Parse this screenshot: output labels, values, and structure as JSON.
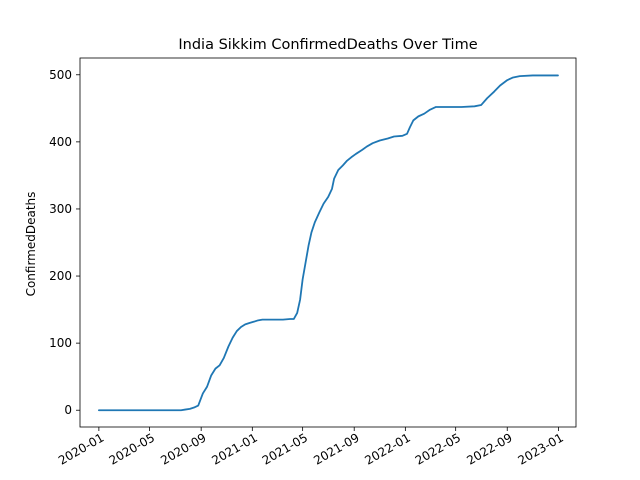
{
  "chart_data": {
    "type": "line",
    "title": "India Sikkim ConfirmedDeaths Over Time",
    "xlabel": "",
    "ylabel": "ConfirmedDeaths",
    "x_tick_labels": [
      "2020-01",
      "2020-05",
      "2020-09",
      "2021-01",
      "2021-05",
      "2021-09",
      "2022-01",
      "2022-05",
      "2022-09",
      "2023-01"
    ],
    "y_tick_labels": [
      "0",
      "100",
      "200",
      "300",
      "400",
      "500"
    ],
    "x_tick_dates": [
      "2020-01-01",
      "2020-05-01",
      "2020-09-01",
      "2021-01-01",
      "2021-05-01",
      "2021-09-01",
      "2022-01-01",
      "2022-05-01",
      "2022-09-01",
      "2023-01-01"
    ],
    "y_ticks": [
      0,
      100,
      200,
      300,
      400,
      500
    ],
    "xlim": [
      "2019-11-17",
      "2023-02-12"
    ],
    "ylim": [
      -25,
      525
    ],
    "grid": false,
    "series": [
      {
        "color": "#1f77b4",
        "points": [
          [
            "2020-01-01",
            0
          ],
          [
            "2020-03-01",
            0
          ],
          [
            "2020-05-01",
            0
          ],
          [
            "2020-07-01",
            0
          ],
          [
            "2020-07-15",
            0
          ],
          [
            "2020-07-25",
            1
          ],
          [
            "2020-08-05",
            2
          ],
          [
            "2020-08-15",
            4
          ],
          [
            "2020-08-25",
            7
          ],
          [
            "2020-09-05",
            25
          ],
          [
            "2020-09-15",
            35
          ],
          [
            "2020-09-25",
            52
          ],
          [
            "2020-10-05",
            62
          ],
          [
            "2020-10-15",
            67
          ],
          [
            "2020-10-25",
            78
          ],
          [
            "2020-11-05",
            95
          ],
          [
            "2020-11-15",
            108
          ],
          [
            "2020-11-25",
            118
          ],
          [
            "2020-12-05",
            124
          ],
          [
            "2020-12-15",
            128
          ],
          [
            "2020-12-25",
            130
          ],
          [
            "2021-01-05",
            132
          ],
          [
            "2021-01-15",
            134
          ],
          [
            "2021-01-25",
            135
          ],
          [
            "2021-02-15",
            135
          ],
          [
            "2021-03-15",
            135
          ],
          [
            "2021-04-01",
            136
          ],
          [
            "2021-04-10",
            136
          ],
          [
            "2021-04-18",
            145
          ],
          [
            "2021-04-25",
            165
          ],
          [
            "2021-05-01",
            195
          ],
          [
            "2021-05-08",
            220
          ],
          [
            "2021-05-15",
            245
          ],
          [
            "2021-05-22",
            265
          ],
          [
            "2021-05-30",
            280
          ],
          [
            "2021-06-10",
            295
          ],
          [
            "2021-06-20",
            308
          ],
          [
            "2021-07-01",
            318
          ],
          [
            "2021-07-10",
            330
          ],
          [
            "2021-07-15",
            345
          ],
          [
            "2021-07-25",
            358
          ],
          [
            "2021-08-05",
            365
          ],
          [
            "2021-08-15",
            372
          ],
          [
            "2021-08-25",
            377
          ],
          [
            "2021-09-05",
            382
          ],
          [
            "2021-09-20",
            388
          ],
          [
            "2021-10-01",
            393
          ],
          [
            "2021-10-15",
            398
          ],
          [
            "2021-11-01",
            402
          ],
          [
            "2021-11-20",
            405
          ],
          [
            "2021-12-05",
            408
          ],
          [
            "2021-12-25",
            409
          ],
          [
            "2022-01-05",
            412
          ],
          [
            "2022-01-12",
            422
          ],
          [
            "2022-01-20",
            432
          ],
          [
            "2022-02-01",
            438
          ],
          [
            "2022-02-15",
            442
          ],
          [
            "2022-03-01",
            448
          ],
          [
            "2022-03-15",
            452
          ],
          [
            "2022-04-15",
            452
          ],
          [
            "2022-05-15",
            452
          ],
          [
            "2022-06-15",
            453
          ],
          [
            "2022-07-01",
            455
          ],
          [
            "2022-07-15",
            465
          ],
          [
            "2022-08-01",
            475
          ],
          [
            "2022-08-15",
            484
          ],
          [
            "2022-09-01",
            492
          ],
          [
            "2022-09-15",
            496
          ],
          [
            "2022-10-01",
            498
          ],
          [
            "2022-11-01",
            499
          ],
          [
            "2022-12-01",
            499
          ],
          [
            "2022-12-31",
            499
          ]
        ]
      }
    ]
  }
}
